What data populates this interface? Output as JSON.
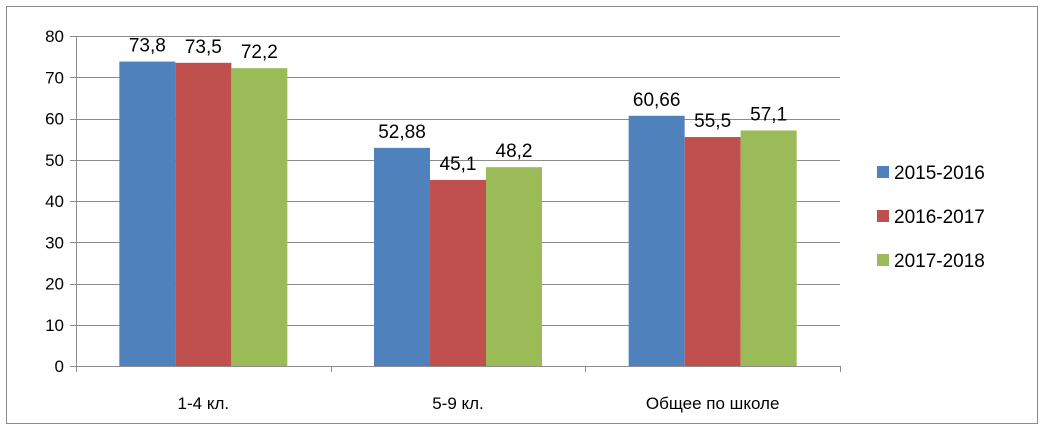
{
  "chart_data": {
    "type": "bar",
    "categories": [
      "1-4 кл.",
      "5-9 кл.",
      "Общее по школе"
    ],
    "series": [
      {
        "name": "2015-2016",
        "color": "#4f81bd",
        "values": [
          73.8,
          52.88,
          60.66
        ],
        "labels": [
          "73,8",
          "52,88",
          "60,66"
        ]
      },
      {
        "name": "2016-2017",
        "color": "#c0504d",
        "values": [
          73.5,
          45.1,
          55.5
        ],
        "labels": [
          "73,5",
          "45,1",
          "55,5"
        ]
      },
      {
        "name": "2017-2018",
        "color": "#9bbb59",
        "values": [
          72.2,
          48.2,
          57.1
        ],
        "labels": [
          "72,2",
          "48,2",
          "57,1"
        ]
      }
    ],
    "ylim": [
      0,
      80
    ],
    "yticks": [
      0,
      10,
      20,
      30,
      40,
      50,
      60,
      70,
      80
    ],
    "grid": true,
    "legend": "right",
    "title": "",
    "xlabel": "",
    "ylabel": ""
  }
}
